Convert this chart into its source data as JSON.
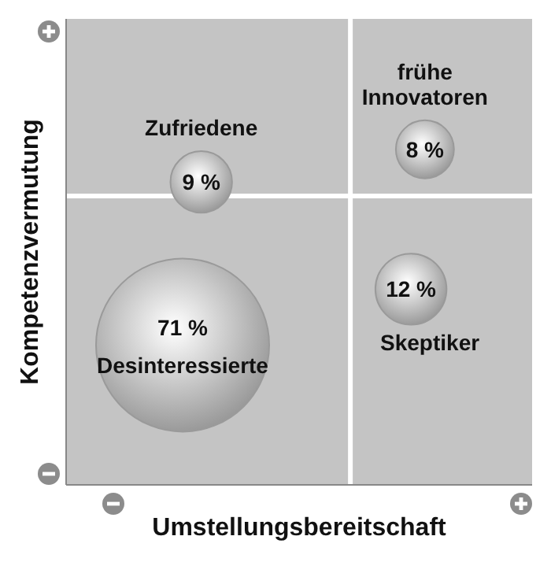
{
  "chart_data": {
    "type": "other",
    "xlabel": "Umstellungsbereitschaft",
    "ylabel": "Kompetenzvermutung",
    "categories": [
      "Desinteressierte",
      "Zufriedene",
      "frühe Innovatoren",
      "Skeptiker"
    ],
    "values": [
      71,
      9,
      8,
      12
    ],
    "value_labels": [
      "71 %",
      "9 %",
      "8 %",
      "12 %"
    ],
    "color": "#9a9a9a"
  }
}
